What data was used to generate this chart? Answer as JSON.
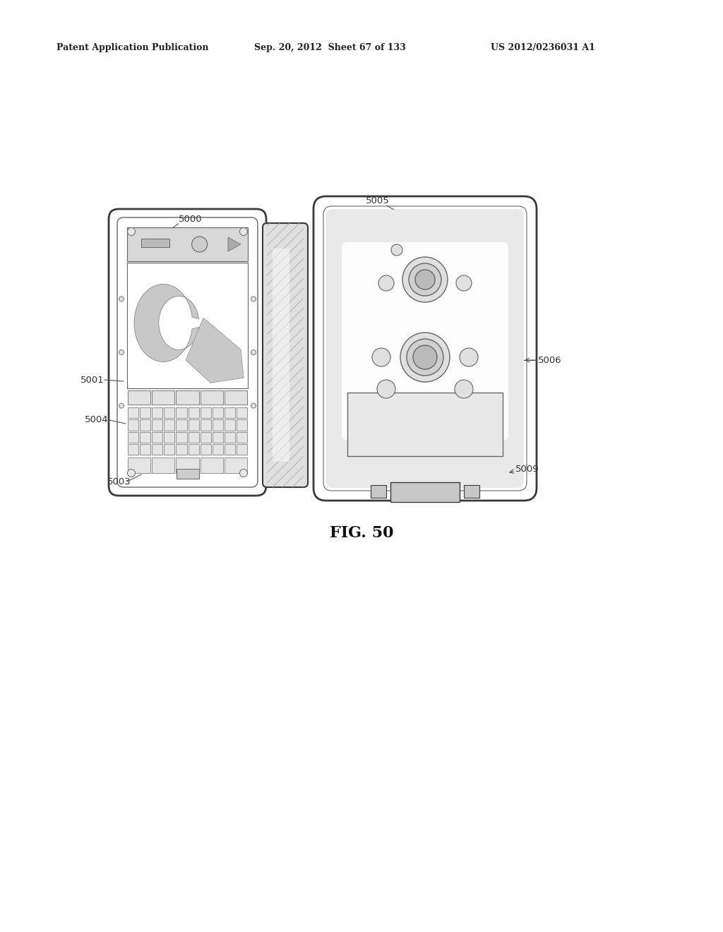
{
  "background_color": "#ffffff",
  "header_left": "Patent Application Publication",
  "header_mid": "Sep. 20, 2012  Sheet 67 of 133",
  "header_right": "US 2012/0236031 A1",
  "figure_caption": "FIG. 50"
}
